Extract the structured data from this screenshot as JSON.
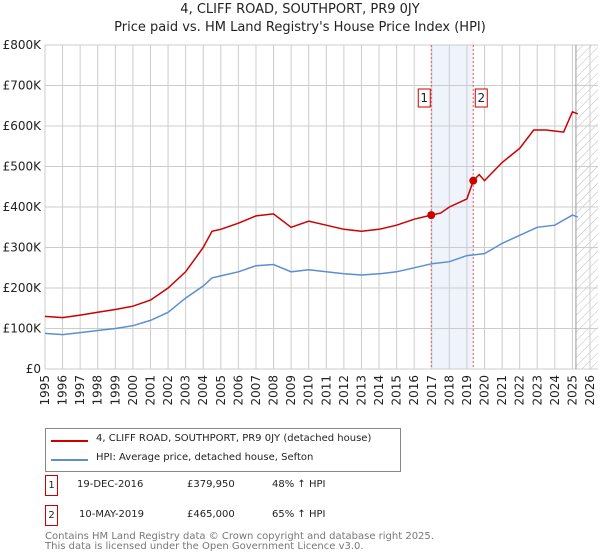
{
  "title": "4, CLIFF ROAD, SOUTHPORT, PR9 0JY",
  "subtitle": "Price paid vs. HM Land Registry's House Price Index (HPI)",
  "chart_data": {
    "type": "line",
    "ylim": [
      0,
      800000
    ],
    "xlim": [
      1995,
      2026
    ],
    "yticks": [
      {
        "v": 0,
        "label": "£0"
      },
      {
        "v": 100000,
        "label": "£100K"
      },
      {
        "v": 200000,
        "label": "£200K"
      },
      {
        "v": 300000,
        "label": "£300K"
      },
      {
        "v": 400000,
        "label": "£400K"
      },
      {
        "v": 500000,
        "label": "£500K"
      },
      {
        "v": 600000,
        "label": "£600K"
      },
      {
        "v": 700000,
        "label": "£700K"
      },
      {
        "v": 800000,
        "label": "£800K"
      }
    ],
    "xticks": [
      "1995",
      "1996",
      "1997",
      "1998",
      "1999",
      "2000",
      "2001",
      "2002",
      "2003",
      "2004",
      "2005",
      "2006",
      "2007",
      "2008",
      "2009",
      "2010",
      "2011",
      "2012",
      "2013",
      "2014",
      "2015",
      "2016",
      "2017",
      "2018",
      "2019",
      "2020",
      "2021",
      "2022",
      "2023",
      "2024",
      "2025",
      "2026"
    ],
    "shaded_range": [
      2016.97,
      2019.36
    ],
    "future_from": 2025.2,
    "series": [
      {
        "name": "4, CLIFF ROAD, SOUTHPORT, PR9 0JY (detached house)",
        "color": "#cc0000",
        "x": [
          1995,
          1996,
          1997,
          1998,
          1999,
          2000,
          2001,
          2002,
          2003,
          2004,
          2004.5,
          2005,
          2006,
          2007,
          2008,
          2009,
          2010,
          2011,
          2012,
          2013,
          2014,
          2015,
          2016,
          2016.97,
          2017.5,
          2018,
          2019,
          2019.36,
          2019.7,
          2020,
          2021,
          2022,
          2022.8,
          2023.5,
          2024.5,
          2025,
          2025.3
        ],
        "y": [
          130000,
          127000,
          133000,
          140000,
          147000,
          155000,
          170000,
          200000,
          240000,
          300000,
          340000,
          345000,
          360000,
          378000,
          383000,
          350000,
          365000,
          355000,
          345000,
          340000,
          345000,
          355000,
          370000,
          379950,
          385000,
          400000,
          420000,
          465000,
          480000,
          465000,
          510000,
          545000,
          590000,
          590000,
          585000,
          635000,
          630000
        ]
      },
      {
        "name": "HPI: Average price, detached house, Sefton",
        "color": "#5b8fd0",
        "x": [
          1995,
          1996,
          1997,
          1998,
          1999,
          2000,
          2001,
          2002,
          2003,
          2004,
          2004.5,
          2005,
          2006,
          2007,
          2008,
          2009,
          2010,
          2011,
          2012,
          2013,
          2014,
          2015,
          2016,
          2017,
          2018,
          2019,
          2020,
          2021,
          2022,
          2023,
          2024,
          2025,
          2025.3
        ],
        "y": [
          88000,
          85000,
          90000,
          95000,
          100000,
          107000,
          120000,
          140000,
          175000,
          205000,
          225000,
          230000,
          240000,
          255000,
          258000,
          240000,
          245000,
          240000,
          235000,
          232000,
          235000,
          240000,
          250000,
          260000,
          265000,
          280000,
          285000,
          310000,
          330000,
          350000,
          355000,
          380000,
          375000
        ]
      }
    ],
    "sales": [
      {
        "id": "1",
        "x": 2016.97,
        "y": 379950
      },
      {
        "id": "2",
        "x": 2019.36,
        "y": 465000
      }
    ]
  },
  "transactions": [
    {
      "id": "1",
      "date": "19-DEC-2016",
      "price": "£379,950",
      "hpi": "48% ↑ HPI"
    },
    {
      "id": "2",
      "date": "10-MAY-2019",
      "price": "£465,000",
      "hpi": "65% ↑ HPI"
    }
  ],
  "footer": [
    "Contains HM Land Registry data © Crown copyright and database right 2025.",
    "This data is licensed under the Open Government Licence v3.0."
  ]
}
